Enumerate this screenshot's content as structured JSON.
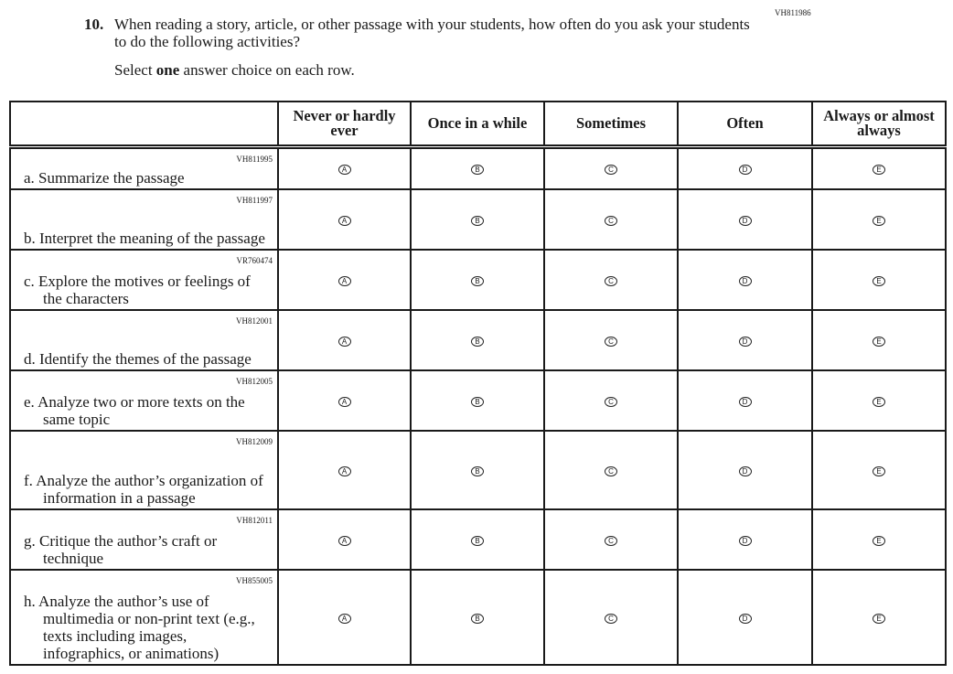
{
  "question": {
    "id": "VH811986",
    "number": "10.",
    "text": "When reading a story, article, or other passage with your students, how often do you ask your students to do the following activities?",
    "instruction_pre": "Select ",
    "instruction_bold": "one",
    "instruction_post": " answer choice on each row."
  },
  "columns": [
    "Never or hardly ever",
    "Once in a while",
    "Sometimes",
    "Often",
    "Always or almost always"
  ],
  "bubbles": [
    "A",
    "B",
    "C",
    "D",
    "E"
  ],
  "rows": [
    {
      "code": "VH811995",
      "label": "a. Summarize the passage"
    },
    {
      "code": "VH811997",
      "label": "b. Interpret the meaning of the passage"
    },
    {
      "code": "VR760474",
      "label": "c. Explore the motives or feelings of the characters"
    },
    {
      "code": "VH812001",
      "label": "d. Identify the themes of the passage"
    },
    {
      "code": "VH812005",
      "label": "e. Analyze two or more texts on the same topic"
    },
    {
      "code": "VH812009",
      "label": "f. Analyze the author’s organization of information in a passage"
    },
    {
      "code": "VH812011",
      "label": "g. Critique the author’s craft or technique"
    },
    {
      "code": "VH855005",
      "label": "h. Analyze the author’s use of multimedia or non-print text (e.g., texts including images, infographics, or animations)"
    }
  ]
}
